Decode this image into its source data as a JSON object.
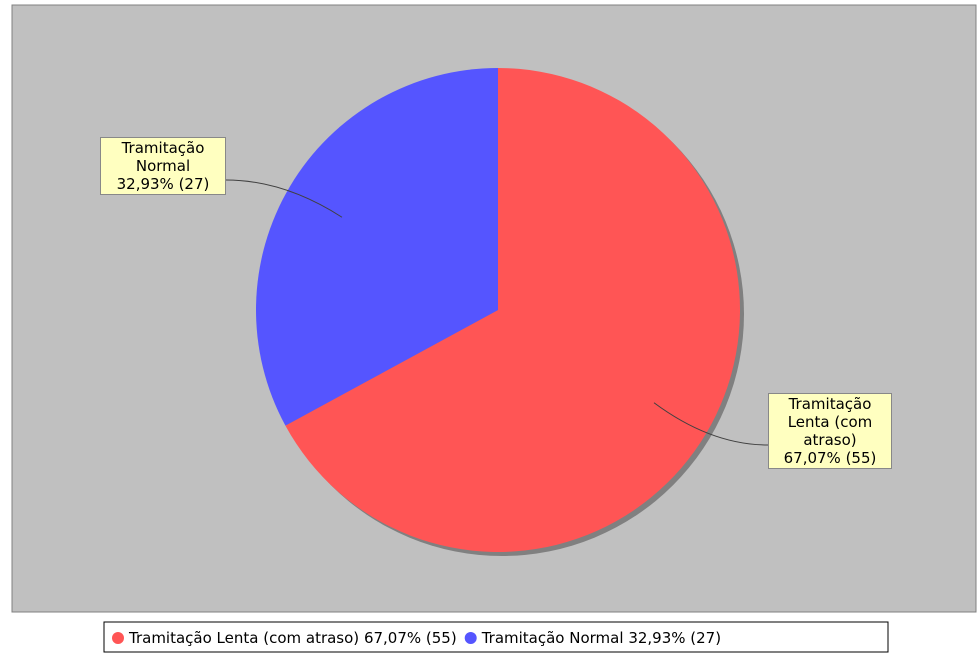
{
  "chart_data": {
    "type": "pie",
    "categories": [
      "Tramitação Lenta (com atraso)",
      "Tramitação Normal"
    ],
    "values": [
      55,
      27
    ],
    "value_labels": [
      "67,07% (55)",
      "32,93% (27)"
    ],
    "colors": [
      "#ff5555",
      "#5555ff"
    ],
    "start_angle": 90,
    "direction": "clockwise",
    "legend": "bottom"
  }
}
